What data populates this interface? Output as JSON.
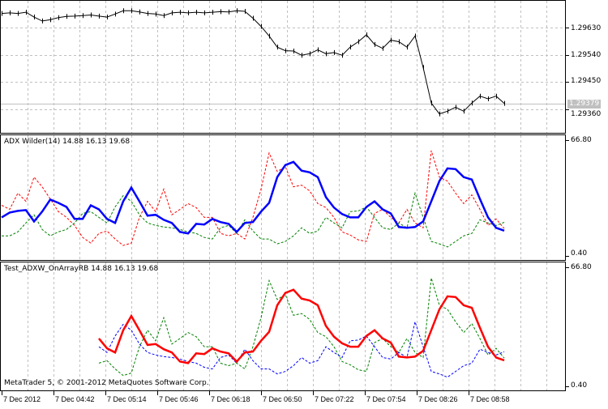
{
  "copyright": "MetaTrader 5, © 2001-2012 MetaQuotes Software Corp.",
  "current_price": "1.29379",
  "colors": {
    "adx_main_pane2": "#0000ff",
    "plus_pane2": "#ff0000",
    "minus_pane2": "#008000",
    "adx_main_pane3": "#ff0000",
    "plus_pane3": "#008000",
    "minus_pane3": "#0000ff",
    "grid": "#c0c0c0",
    "price": "#000000",
    "current_price_bg": "#c0c0c0"
  },
  "time_axis": [
    "7 Dec 2012",
    "7 Dec 04:42",
    "7 Dec 05:14",
    "7 Dec 05:46",
    "7 Dec 06:18",
    "7 Dec 06:50",
    "7 Dec 07:22",
    "7 Dec 07:54",
    "7 Dec 08:26",
    "7 Dec 08:58"
  ],
  "chart_data": [
    {
      "type": "line",
      "grid": true,
      "yticks": [
        "1.29630",
        "1.29540",
        "1.29450",
        "1.29360"
      ],
      "ylim": [
        1.29281,
        1.2972
      ],
      "x": [
        "04:10",
        "04:15",
        "04:20",
        "04:25",
        "04:30",
        "04:35",
        "04:40",
        "04:45",
        "04:50",
        "04:55",
        "05:00",
        "05:05",
        "05:10",
        "05:15",
        "05:20",
        "05:25",
        "05:30",
        "05:35",
        "05:40",
        "05:45",
        "05:50",
        "05:55",
        "06:00",
        "06:05",
        "06:10",
        "06:15",
        "06:20",
        "06:25",
        "06:30",
        "06:35",
        "06:40",
        "06:45",
        "06:50",
        "06:55",
        "07:00",
        "07:05",
        "07:10",
        "07:15",
        "07:20",
        "07:25",
        "07:30",
        "07:35",
        "07:40",
        "07:45",
        "07:50",
        "07:55",
        "08:00",
        "08:05",
        "08:10",
        "08:15",
        "08:20",
        "08:25",
        "08:30",
        "08:35",
        "08:40",
        "08:45",
        "08:50",
        "08:55",
        "09:00",
        "09:05",
        "09:10",
        "09:15",
        "09:20"
      ],
      "values": [
        1.29678,
        1.2968,
        1.29678,
        1.29682,
        1.29666,
        1.29653,
        1.29657,
        1.29664,
        1.29668,
        1.29669,
        1.29671,
        1.29673,
        1.29669,
        1.29666,
        1.29676,
        1.29687,
        1.29687,
        1.29683,
        1.29678,
        1.29676,
        1.29671,
        1.2968,
        1.29682,
        1.2968,
        1.29682,
        1.2968,
        1.29682,
        1.29684,
        1.29683,
        1.29687,
        1.29685,
        1.29662,
        1.29635,
        1.29603,
        1.29566,
        1.29554,
        1.29553,
        1.29539,
        1.29544,
        1.29557,
        1.29544,
        1.29548,
        1.29539,
        1.29566,
        1.29584,
        1.29607,
        1.29575,
        1.29562,
        1.29589,
        1.29584,
        1.29566,
        1.29603,
        1.29498,
        1.2938,
        1.29344,
        1.29353,
        1.29366,
        1.29353,
        1.2938,
        1.29403,
        1.29394,
        1.29403,
        1.29379
      ]
    },
    {
      "type": "line",
      "title": "ADX Wilder(14) 14.88 16.13 19.68",
      "ylim": [
        0.4,
        66.8
      ],
      "yticks": [
        "66.80",
        "0.40"
      ],
      "series": [
        {
          "color": "#0000ff",
          "style": "solid",
          "values": [
            22.5,
            25.3,
            26.2,
            26.7,
            20.2,
            25.8,
            32.7,
            30.8,
            28.5,
            21.6,
            21.6,
            29.4,
            27.1,
            21.6,
            19.3,
            31.7,
            39.6,
            31.7,
            23.5,
            24.0,
            21.1,
            19.3,
            14.2,
            13.3,
            18.8,
            18.4,
            21.6,
            19.8,
            18.8,
            14.2,
            19.3,
            19.8,
            25.8,
            30.8,
            45.6,
            52.5,
            54.3,
            49.3,
            48.3,
            45.6,
            34.1,
            28.1,
            24.4,
            22.5,
            22.5,
            28.5,
            31.7,
            27.1,
            24.8,
            17.0,
            16.5,
            17.0,
            20.2,
            31.7,
            43.3,
            50.6,
            50.2,
            45.6,
            44.2,
            33.1,
            22.5,
            16.5,
            14.88
          ]
        },
        {
          "color": "#ff0000",
          "style": "dashed",
          "values": [
            29.4,
            27.1,
            36.4,
            31.7,
            45.6,
            40.0,
            33.1,
            25.8,
            22.5,
            17.9,
            11.0,
            7.8,
            13.3,
            14.7,
            10.1,
            6.4,
            7.8,
            22.5,
            31.7,
            25.8,
            38.7,
            24.0,
            27.1,
            30.4,
            28.1,
            22.5,
            22.5,
            13.3,
            11.9,
            13.3,
            10.1,
            22.5,
            38.7,
            59.4,
            48.8,
            51.6,
            40.0,
            41.0,
            37.7,
            30.4,
            28.1,
            22.5,
            14.2,
            12.4,
            9.6,
            8.7,
            24.8,
            27.1,
            22.5,
            19.3,
            27.1,
            19.3,
            16.5,
            60.8,
            45.6,
            43.3,
            36.4,
            30.4,
            35.4,
            27.1,
            17.9,
            21.6,
            16.13
          ]
        },
        {
          "color": "#008000",
          "style": "dashed",
          "values": [
            11.9,
            11.9,
            14.2,
            19.3,
            24.0,
            15.6,
            11.9,
            14.2,
            15.6,
            19.3,
            24.8,
            25.8,
            22.5,
            19.3,
            28.5,
            35.0,
            31.7,
            24.0,
            19.3,
            17.9,
            17.0,
            16.5,
            15.6,
            14.2,
            13.3,
            11.0,
            10.1,
            16.5,
            17.9,
            13.3,
            21.1,
            14.7,
            10.1,
            10.1,
            7.3,
            8.7,
            11.9,
            16.5,
            13.3,
            14.7,
            22.5,
            19.3,
            16.5,
            25.8,
            26.2,
            28.5,
            22.5,
            16.5,
            15.6,
            19.3,
            16.5,
            36.4,
            22.5,
            8.7,
            7.3,
            5.5,
            8.7,
            11.9,
            13.3,
            21.1,
            19.3,
            17.9,
            19.68
          ]
        }
      ]
    },
    {
      "type": "line",
      "title": "Test_ADXW_OnArrayRB 14.88 16.13 19.68",
      "ylim": [
        0.4,
        66.8
      ],
      "yticks": [
        "66.80",
        "0.40"
      ],
      "series": [
        {
          "color": "#ff0000",
          "style": "solid",
          "values": [
            null,
            null,
            null,
            null,
            null,
            null,
            null,
            null,
            null,
            null,
            null,
            null,
            27.1,
            21.6,
            19.3,
            31.7,
            39.6,
            31.7,
            23.5,
            24.0,
            21.1,
            19.3,
            14.2,
            13.3,
            18.8,
            18.4,
            21.6,
            19.8,
            18.8,
            14.2,
            19.3,
            19.8,
            25.8,
            30.8,
            45.6,
            52.5,
            54.3,
            49.3,
            48.3,
            45.6,
            34.1,
            28.1,
            24.4,
            22.5,
            22.5,
            28.5,
            31.7,
            27.1,
            24.8,
            17.0,
            16.5,
            17.0,
            20.2,
            31.7,
            43.3,
            50.6,
            50.2,
            45.6,
            44.2,
            33.1,
            22.5,
            16.5,
            14.88
          ]
        },
        {
          "color": "#008000",
          "style": "dashed",
          "values": [
            null,
            null,
            null,
            null,
            null,
            null,
            null,
            null,
            null,
            null,
            null,
            null,
            13.3,
            14.7,
            10.1,
            6.4,
            7.8,
            22.5,
            31.7,
            25.8,
            38.7,
            24.0,
            27.1,
            30.4,
            28.1,
            22.5,
            22.5,
            13.3,
            11.9,
            13.3,
            10.1,
            22.5,
            38.7,
            59.4,
            48.8,
            51.6,
            40.0,
            41.0,
            37.7,
            30.4,
            28.1,
            22.5,
            14.2,
            12.4,
            9.6,
            8.7,
            24.8,
            27.1,
            22.5,
            19.3,
            27.1,
            19.3,
            16.5,
            60.8,
            45.6,
            43.3,
            36.4,
            30.4,
            35.4,
            27.1,
            17.9,
            21.6,
            16.13
          ]
        },
        {
          "color": "#0000ff",
          "style": "dashed",
          "values": [
            null,
            null,
            null,
            null,
            null,
            null,
            null,
            null,
            null,
            null,
            null,
            null,
            22.5,
            19.3,
            28.5,
            35.0,
            31.7,
            24.0,
            19.3,
            17.9,
            17.0,
            16.5,
            15.6,
            14.2,
            13.3,
            11.0,
            10.1,
            16.5,
            17.9,
            13.3,
            21.1,
            14.7,
            10.1,
            10.1,
            7.3,
            8.7,
            11.9,
            16.5,
            13.3,
            14.7,
            22.5,
            19.3,
            16.5,
            25.8,
            26.2,
            28.5,
            22.5,
            16.5,
            15.6,
            19.3,
            16.5,
            36.4,
            22.5,
            8.7,
            7.3,
            5.5,
            8.7,
            11.9,
            13.3,
            21.1,
            19.3,
            17.9,
            19.68
          ]
        }
      ]
    }
  ]
}
